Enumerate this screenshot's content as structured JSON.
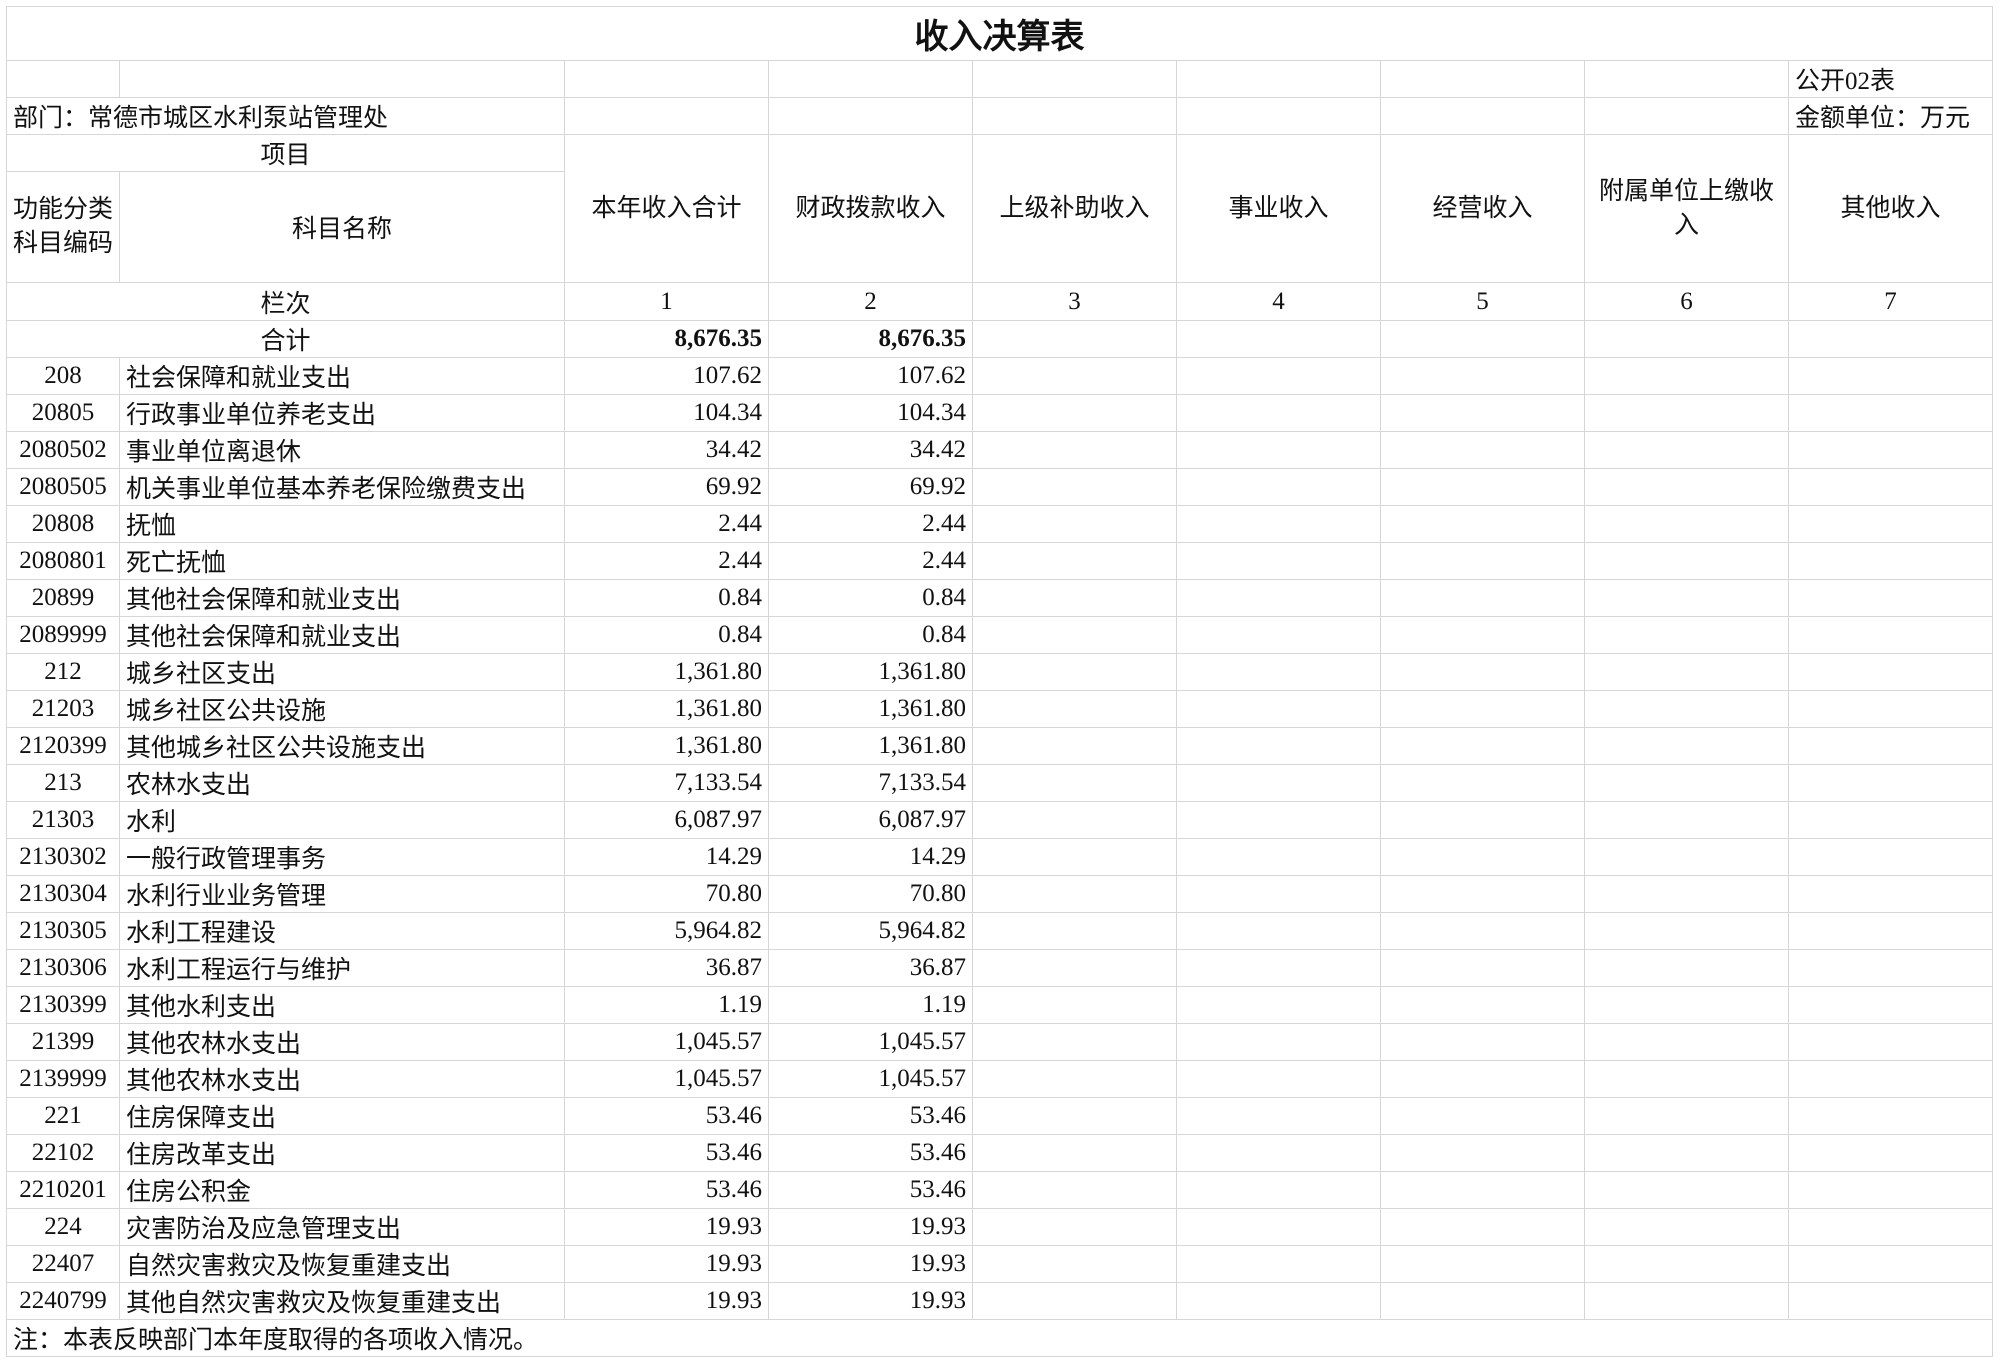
{
  "title": "收入决算表",
  "form_no": "公开02表",
  "department": "部门：常德市城区水利泵站管理处",
  "unit": "金额单位：万元",
  "header": {
    "item": "项目",
    "code": "功能分类科目编码",
    "name": "科目名称",
    "columns": [
      "本年收入合计",
      "财政拨款收入",
      "上级补助收入",
      "事业收入",
      "经营收入",
      "附属单位上缴收入",
      "其他收入"
    ]
  },
  "column_numbers_label": "栏次",
  "column_numbers": [
    1,
    2,
    3,
    4,
    5,
    6,
    7
  ],
  "total": {
    "label": "合计",
    "values": [
      "8,676.35",
      "8,676.35"
    ]
  },
  "rows": [
    [
      "208",
      "社会保障和就业支出",
      "107.62",
      "107.62"
    ],
    [
      "20805",
      "行政事业单位养老支出",
      "104.34",
      "104.34"
    ],
    [
      "2080502",
      "事业单位离退休",
      "34.42",
      "34.42"
    ],
    [
      "2080505",
      "机关事业单位基本养老保险缴费支出",
      "69.92",
      "69.92"
    ],
    [
      "20808",
      "抚恤",
      "2.44",
      "2.44"
    ],
    [
      "2080801",
      "死亡抚恤",
      "2.44",
      "2.44"
    ],
    [
      "20899",
      "其他社会保障和就业支出",
      "0.84",
      "0.84"
    ],
    [
      "2089999",
      "其他社会保障和就业支出",
      "0.84",
      "0.84"
    ],
    [
      "212",
      "城乡社区支出",
      "1,361.80",
      "1,361.80"
    ],
    [
      "21203",
      "城乡社区公共设施",
      "1,361.80",
      "1,361.80"
    ],
    [
      "2120399",
      "其他城乡社区公共设施支出",
      "1,361.80",
      "1,361.80"
    ],
    [
      "213",
      "农林水支出",
      "7,133.54",
      "7,133.54"
    ],
    [
      "21303",
      "水利",
      "6,087.97",
      "6,087.97"
    ],
    [
      "2130302",
      "一般行政管理事务",
      "14.29",
      "14.29"
    ],
    [
      "2130304",
      "水利行业业务管理",
      "70.80",
      "70.80"
    ],
    [
      "2130305",
      "水利工程建设",
      "5,964.82",
      "5,964.82"
    ],
    [
      "2130306",
      "水利工程运行与维护",
      "36.87",
      "36.87"
    ],
    [
      "2130399",
      "其他水利支出",
      "1.19",
      "1.19"
    ],
    [
      "21399",
      "其他农林水支出",
      "1,045.57",
      "1,045.57"
    ],
    [
      "2139999",
      "其他农林水支出",
      "1,045.57",
      "1,045.57"
    ],
    [
      "221",
      "住房保障支出",
      "53.46",
      "53.46"
    ],
    [
      "22102",
      "住房改革支出",
      "53.46",
      "53.46"
    ],
    [
      "2210201",
      "住房公积金",
      "53.46",
      "53.46"
    ],
    [
      "224",
      "灾害防治及应急管理支出",
      "19.93",
      "19.93"
    ],
    [
      "22407",
      "自然灾害救灾及恢复重建支出",
      "19.93",
      "19.93"
    ],
    [
      "2240799",
      "其他自然灾害救灾及恢复重建支出",
      "19.93",
      "19.93"
    ]
  ],
  "note": "注：本表反映部门本年度取得的各项收入情况。"
}
